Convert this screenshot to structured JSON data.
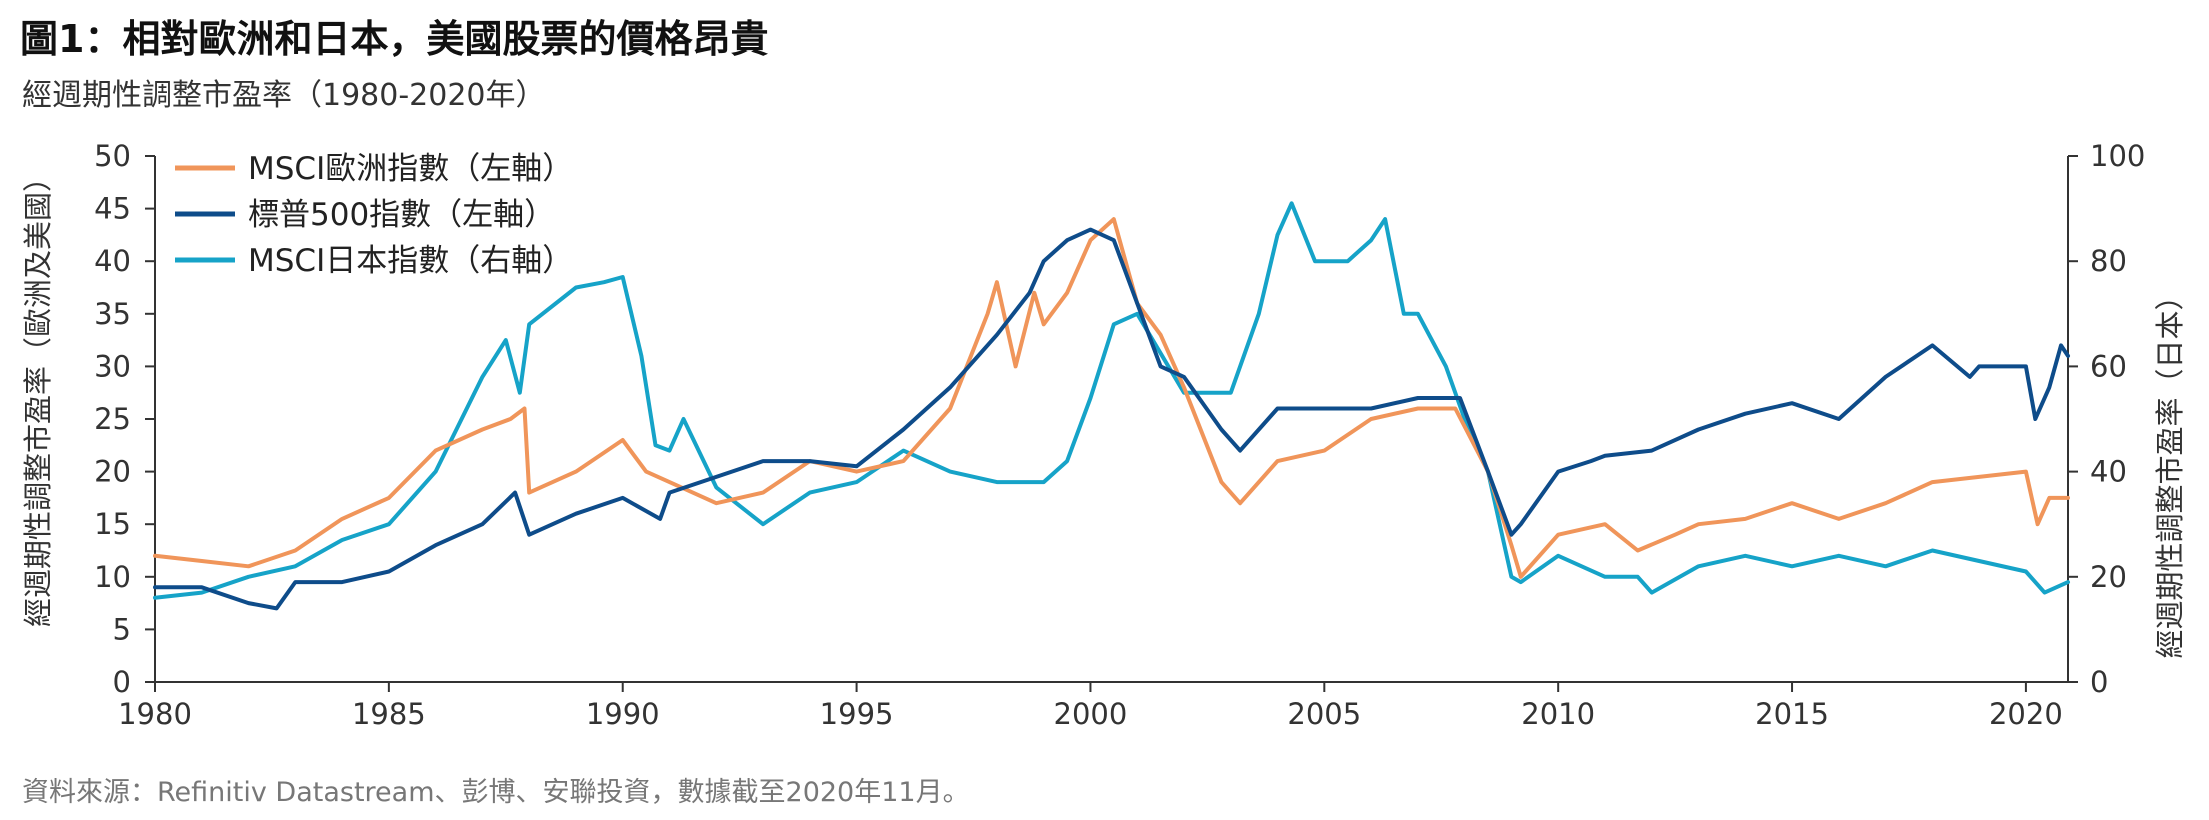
{
  "header": {
    "title": "圖1：相對歐洲和日本，美國股票的價格昂貴",
    "subtitle": "經週期性調整市盈率（1980-2020年）"
  },
  "footer": {
    "source": "資料來源：Refinitiv Datastream、彭博、安聯投資，數據截至2020年11月。"
  },
  "colors": {
    "europe": "#F0955A",
    "us": "#0E4C8A",
    "japan": "#16A3C8",
    "axis": "#333333"
  },
  "chart_data": {
    "type": "line",
    "title": "圖1：相對歐洲和日本，美國股票的價格昂貴",
    "subtitle": "經週期性調整市盈率（1980-2020年）",
    "xlabel": "",
    "ylabel_left": "經週期性調整市盈率（歐洲及美國）",
    "ylabel_right": "經週期性調整市盈率（日本）",
    "xlim": [
      1980,
      2020.9
    ],
    "ylim_left": [
      0,
      50
    ],
    "ylim_right": [
      0,
      100
    ],
    "x_ticks": [
      "1980",
      "1985",
      "1990",
      "1995",
      "2000",
      "2005",
      "2010",
      "2015",
      "2020"
    ],
    "y_ticks_left": [
      "0",
      "5",
      "10",
      "15",
      "20",
      "25",
      "30",
      "35",
      "40",
      "45",
      "50"
    ],
    "y_ticks_right": [
      "0",
      "20",
      "40",
      "60",
      "80",
      "100"
    ],
    "legend_position": "top-left",
    "series": [
      {
        "name": "MSCI歐洲指數（左軸）",
        "axis": "left",
        "color": "#F0955A",
        "x": [
          1980,
          1981,
          1982,
          1983,
          1984,
          1985,
          1986,
          1987,
          1987.6,
          1987.9,
          1988,
          1989,
          1990,
          1990.5,
          1991,
          1992,
          1993,
          1994,
          1995,
          1996,
          1997,
          1997.8,
          1998,
          1998.4,
          1998.8,
          1999,
          1999.5,
          2000,
          2000.5,
          2001,
          2001.5,
          2002,
          2002.8,
          2003.2,
          2004,
          2005,
          2006,
          2007,
          2007.8,
          2008.5,
          2009,
          2009.2,
          2010,
          2011,
          2011.7,
          2012.5,
          2013,
          2014,
          2015,
          2016,
          2017,
          2018,
          2019,
          2020,
          2020.25,
          2020.5,
          2020.9
        ],
        "values": [
          12,
          11.5,
          11,
          12.5,
          15.5,
          17.5,
          22,
          24,
          25,
          26,
          18,
          20,
          23,
          20,
          19,
          17,
          18,
          21,
          20,
          21,
          26,
          35,
          38,
          30,
          37,
          34,
          37,
          42,
          44,
          36,
          33,
          28,
          19,
          17,
          21,
          22,
          25,
          26,
          26,
          20,
          13,
          10,
          14,
          15,
          12.5,
          14,
          15,
          15.5,
          17,
          15.5,
          17,
          19,
          19.5,
          20,
          15,
          17.5,
          17.5
        ]
      },
      {
        "name": "標普500指數（左軸）",
        "axis": "left",
        "color": "#0E4C8A",
        "x": [
          1980,
          1981,
          1982,
          1982.6,
          1983,
          1984,
          1985,
          1986,
          1987,
          1987.7,
          1988,
          1989,
          1990,
          1990.8,
          1991,
          1992,
          1993,
          1994,
          1995,
          1996,
          1997,
          1998,
          1998.7,
          1999,
          1999.5,
          2000,
          2000.5,
          2001,
          2001.5,
          2002,
          2002.8,
          2003.2,
          2004,
          2005,
          2006,
          2007,
          2007.9,
          2008.5,
          2009,
          2009.2,
          2010,
          2010.7,
          2011,
          2012,
          2013,
          2014,
          2015,
          2016,
          2017,
          2018,
          2018.8,
          2019,
          2019.5,
          2020,
          2020.2,
          2020.5,
          2020.75,
          2020.9
        ],
        "values": [
          9,
          9,
          7.5,
          7,
          9.5,
          9.5,
          10.5,
          13,
          15,
          18,
          14,
          16,
          17.5,
          15.5,
          18,
          19.5,
          21,
          21,
          20.5,
          24,
          28,
          33,
          37,
          40,
          42,
          43,
          42,
          36,
          30,
          29,
          24,
          22,
          26,
          26,
          26,
          27,
          27,
          20,
          14,
          15,
          20,
          21,
          21.5,
          22,
          24,
          25.5,
          26.5,
          25,
          29,
          32,
          29,
          30,
          30,
          30,
          25,
          28,
          32,
          31
        ]
      },
      {
        "name": "MSCI日本指數（右軸）",
        "axis": "right",
        "color": "#16A3C8",
        "x": [
          1980,
          1981,
          1982,
          1983,
          1984,
          1985,
          1986,
          1987,
          1987.5,
          1987.8,
          1988,
          1989,
          1989.6,
          1990,
          1990.4,
          1990.7,
          1991,
          1991.3,
          1992,
          1993,
          1994,
          1995,
          1996,
          1997,
          1998,
          1999,
          1999.5,
          2000,
          2000.5,
          2001,
          2002,
          2003,
          2003.6,
          2004,
          2004.3,
          2004.8,
          2005,
          2005.5,
          2006,
          2006.3,
          2006.7,
          2007,
          2007.6,
          2008,
          2008.5,
          2009,
          2009.2,
          2010,
          2011,
          2011.7,
          2012,
          2013,
          2014,
          2015,
          2016,
          2017,
          2018,
          2019,
          2020,
          2020.4,
          2020.9
        ],
        "values": [
          16,
          17,
          20,
          22,
          27,
          30,
          40,
          58,
          65,
          55,
          68,
          75,
          76,
          77,
          62,
          45,
          44,
          50,
          37,
          30,
          36,
          38,
          44,
          40,
          38,
          38,
          42,
          54,
          68,
          70,
          55,
          55,
          70,
          85,
          91,
          80,
          80,
          80,
          84,
          88,
          70,
          70,
          60,
          50,
          40,
          20,
          19,
          24,
          20,
          20,
          17,
          22,
          24,
          22,
          24,
          22,
          25,
          23,
          21,
          17,
          19
        ]
      }
    ]
  }
}
